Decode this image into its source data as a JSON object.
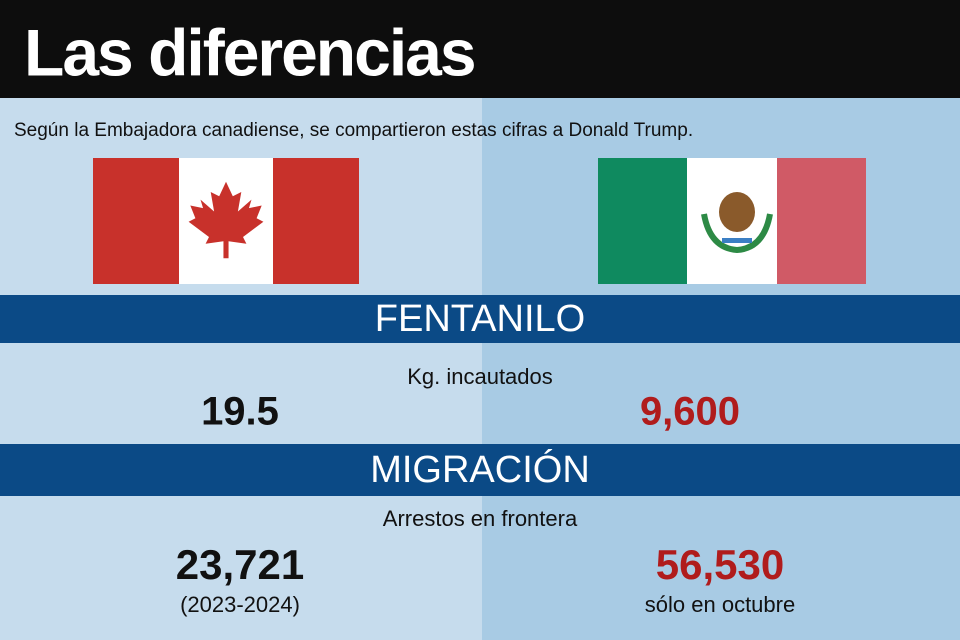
{
  "header": {
    "title": "Las diferencias"
  },
  "subtitle": "Según la Embajadora canadiense, se compartieron estas cifras a Donald Trump.",
  "sections": [
    {
      "title": "FENTANILO",
      "metric": "Kg. incautados",
      "canada": {
        "value": "19.5"
      },
      "mexico": {
        "value": "9,600"
      }
    },
    {
      "title": "MIGRACIÓN",
      "metric": "Arrestos en frontera",
      "canada": {
        "value": "23,721",
        "note": "(2023-2024)"
      },
      "mexico": {
        "value": "56,530",
        "note": "sólo en octubre"
      }
    }
  ]
}
